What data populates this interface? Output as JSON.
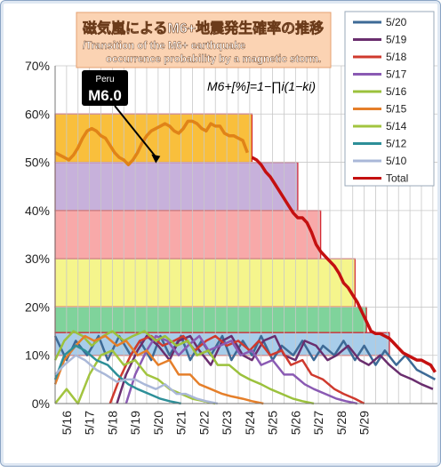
{
  "chart_data": {
    "type": "line",
    "title": "磁気嵐によるM6+地震発生確率の推移",
    "subtitle": "/Transition of the M6+ earthquake occurrence probability by a magnetic storm.",
    "formula": "M6+[%]=1−∏i(1−ki)",
    "annotation": {
      "country": "Peru",
      "magnitude": "M6.0",
      "x": 4.4,
      "y": 50
    },
    "ylim": [
      0,
      70
    ],
    "xlim": [
      0,
      16.7
    ],
    "yticks": [
      "0%",
      "10%",
      "20%",
      "30%",
      "40%",
      "50%",
      "60%",
      "70%"
    ],
    "xticks": [
      "5/16",
      "5/17",
      "5/18",
      "5/19",
      "5/20",
      "5/21",
      "5/22",
      "5/23",
      "5/24",
      "5/25",
      "5/26",
      "5/27",
      "5/28",
      "5/29"
    ],
    "legend_position": "right",
    "bands": [
      {
        "x0": 0,
        "x1": 8.6,
        "y0": 50,
        "y1": 60,
        "color": "#f9bf3c"
      },
      {
        "x0": 0,
        "x1": 10.6,
        "y0": 40,
        "y1": 50,
        "color": "#c7b1db"
      },
      {
        "x0": 0,
        "x1": 11.6,
        "y0": 30,
        "y1": 40,
        "color": "#f8a9a9"
      },
      {
        "x0": 0,
        "x1": 13.1,
        "y0": 20,
        "y1": 30,
        "color": "#f5f58c"
      },
      {
        "x0": 0,
        "x1": 13.6,
        "y0": 14.7,
        "y1": 20,
        "color": "#7fd39b"
      },
      {
        "x0": 0,
        "x1": 14.6,
        "y0": 10,
        "y1": 14.7,
        "color": "#a8cdea"
      }
    ],
    "series": [
      {
        "name": "5/20",
        "color": "#3d6a96",
        "width": 2.5,
        "x": [
          0,
          0.5,
          0.9,
          1.4,
          1.9,
          2.3,
          2.8,
          3.3,
          3.7,
          4.2,
          4.6,
          5.0,
          5.5,
          5.9,
          6.4,
          6.8,
          7.3,
          7.7,
          8.2,
          8.6,
          9.0,
          9.5,
          9.9,
          10.4,
          10.8,
          11.3,
          11.7,
          12.2,
          12.6,
          13.1,
          13.5,
          14.0,
          14.4,
          14.9,
          15.3,
          15.8,
          16.2,
          16.6
        ],
        "y": [
          14,
          9,
          13,
          10,
          14,
          9,
          14,
          10,
          13,
          9,
          14,
          10,
          14,
          9,
          13,
          10,
          14,
          9,
          13,
          10,
          14,
          9,
          12,
          10,
          13,
          9,
          12,
          10,
          13,
          9,
          12,
          8,
          11,
          8,
          10,
          7,
          6,
          5
        ]
      },
      {
        "name": "5/19",
        "color": "#6a2e6e",
        "width": 2.5,
        "x": [
          2.7,
          3.1,
          3.6,
          4.0,
          4.5,
          5.0,
          5.4,
          5.9,
          6.3,
          6.8,
          7.3,
          7.7,
          8.2,
          8.6,
          9.1,
          9.6,
          10.0,
          10.5,
          10.9,
          11.4,
          11.9,
          12.3,
          12.8,
          13.3,
          13.7,
          14.2,
          14.6,
          15.1,
          15.6,
          16.0,
          16.5
        ],
        "y": [
          0,
          6,
          11,
          14,
          12,
          9,
          13,
          14,
          11,
          8,
          13,
          14,
          10,
          9,
          13,
          14,
          10,
          9,
          13,
          12,
          9,
          10,
          12,
          9,
          8,
          10,
          8,
          6,
          5,
          4,
          3
        ]
      },
      {
        "name": "5/18",
        "color": "#cf3a2e",
        "width": 2.5,
        "x": [
          2.4,
          2.8,
          3.3,
          3.7,
          4.2,
          4.7,
          5.2,
          5.6,
          6.1,
          6.6,
          7.0,
          7.5,
          8.0,
          8.5,
          8.9,
          9.4,
          9.9,
          10.3,
          10.8,
          11.2,
          11.7,
          12.2,
          12.6,
          13.1,
          13.5
        ],
        "y": [
          0,
          5,
          10,
          13,
          14,
          12,
          13,
          14,
          11,
          13,
          14,
          12,
          13,
          11,
          13,
          10,
          11,
          8,
          9,
          6,
          5,
          3,
          2,
          1,
          0
        ]
      },
      {
        "name": "5/17",
        "color": "#8a5ab3",
        "width": 2.5,
        "x": [
          3.1,
          3.5,
          4.0,
          4.4,
          4.9,
          5.4,
          5.8,
          6.3,
          6.7,
          7.2,
          7.7,
          8.1,
          8.6,
          9.0,
          9.5,
          10.0,
          10.4,
          10.9,
          11.3,
          11.8,
          12.3,
          12.7,
          13.2
        ],
        "y": [
          0,
          6,
          11,
          14,
          13,
          10,
          12,
          14,
          11,
          12,
          13,
          10,
          11,
          8,
          9,
          6,
          6,
          4,
          3,
          2,
          1,
          0.5,
          0
        ]
      },
      {
        "name": "5/16",
        "color": "#9bc13c",
        "width": 2.5,
        "x": [
          0,
          0.4,
          0.8,
          1.2,
          1.6,
          2.1,
          2.5,
          3.0,
          3.4,
          3.9,
          4.4,
          4.8,
          5.3,
          5.8,
          6.2,
          6.7,
          7.1,
          7.6,
          8.1,
          8.5,
          9.0,
          9.4,
          9.9,
          10.4,
          10.8,
          11.3
        ],
        "y": [
          9,
          13,
          15,
          14,
          12,
          14,
          15,
          13,
          14,
          15,
          13,
          14,
          12,
          13,
          10,
          11,
          8,
          8,
          6,
          5,
          4,
          3,
          2,
          1,
          0.5,
          0
        ]
      },
      {
        "name": "5/15",
        "color": "#e57f2a",
        "width": 2.5,
        "x": [
          0,
          0.4,
          0.9,
          1.3,
          1.7,
          2.2,
          2.7,
          3.1,
          3.6,
          4.0,
          4.5,
          5.0,
          5.4,
          5.9,
          6.3,
          6.8,
          7.3,
          7.7,
          8.2,
          8.6,
          9.1
        ],
        "y": [
          4,
          9,
          12,
          14,
          13,
          14,
          12,
          13,
          10,
          11,
          8,
          9,
          6,
          6,
          4,
          3,
          2,
          1.5,
          1,
          0.5,
          0
        ]
      },
      {
        "name": "5/14",
        "color": "#a2c43f",
        "width": 2.5,
        "x": [
          0,
          0.5,
          1.0,
          1.5,
          2.0,
          2.5,
          3.0,
          3.5,
          4.0,
          4.5,
          5.0,
          5.5,
          6.0,
          6.5,
          7.0
        ],
        "y": [
          0,
          3,
          0,
          6,
          10,
          11,
          8,
          9,
          6,
          5,
          3,
          2,
          1,
          0.5,
          0
        ]
      },
      {
        "name": "5/12",
        "color": "#2d8f98",
        "width": 2.5,
        "x": [
          0,
          0.4,
          0.9,
          1.3,
          1.8,
          2.3,
          2.7,
          3.2,
          3.6,
          4.1,
          4.6,
          5.0,
          5.5
        ],
        "y": [
          5,
          10,
          12,
          11,
          9,
          8,
          6,
          4,
          3,
          2,
          1,
          0.5,
          0
        ]
      },
      {
        "name": "5/10",
        "color": "#aab8d8",
        "width": 2.5,
        "x": [
          0,
          0.4,
          0.9,
          1.3,
          1.8,
          2.2,
          2.7,
          3.1,
          3.5,
          3.9,
          4.4,
          4.8,
          5.3,
          5.7,
          6.2,
          6.6,
          7.1
        ],
        "y": [
          6,
          8,
          10,
          9,
          7,
          6,
          4.5,
          5,
          5,
          4,
          3,
          4,
          2,
          2,
          1,
          0.5,
          0
        ]
      },
      {
        "name": "Total",
        "color": "#e08318",
        "width": 3.5,
        "x": [
          0,
          0.2,
          0.4,
          0.6,
          0.8,
          1.0,
          1.2,
          1.4,
          1.6,
          1.8,
          2.0,
          2.2,
          2.4,
          2.6,
          2.8,
          3.0,
          3.2,
          3.4,
          3.6,
          3.8,
          4.0,
          4.2,
          4.4,
          4.6,
          4.8,
          5.0,
          5.2,
          5.4,
          5.6,
          5.8,
          6.0,
          6.2,
          6.4,
          6.6,
          6.8,
          7.0,
          7.2,
          7.4,
          7.6,
          7.8,
          8.0,
          8.2,
          8.4,
          8.6,
          8.8,
          9.0,
          9.2,
          9.4,
          9.6,
          9.8,
          10.0,
          10.2,
          10.4,
          10.6,
          10.8,
          11.0,
          11.2,
          11.4,
          11.6,
          11.8,
          12.0,
          12.2,
          12.4,
          12.6,
          12.8,
          13.0,
          13.2,
          13.4,
          13.6,
          13.8,
          14.0,
          14.2,
          14.4,
          14.6,
          14.8,
          15.0,
          15.2,
          15.4,
          15.6,
          15.8,
          16.0,
          16.2,
          16.4,
          16.6
        ],
        "y": [
          52,
          51.5,
          51,
          50.5,
          51.5,
          53,
          55,
          56.5,
          57,
          56.5,
          55.5,
          55,
          53.5,
          52,
          51,
          50.5,
          49.5,
          50.5,
          52,
          54,
          55.5,
          56.5,
          57,
          57.5,
          58,
          57.5,
          56.5,
          56,
          57,
          58.5,
          58.5,
          58,
          57,
          56.5,
          58,
          57.5,
          57.5,
          56,
          55.5,
          55.5,
          55,
          54.5,
          52,
          51,
          50.5,
          49.5,
          48,
          47,
          45.5,
          44,
          42.5,
          41,
          39.5,
          38.5,
          38.5,
          37.5,
          35.5,
          33,
          31.5,
          30.5,
          29.5,
          28.5,
          27,
          25,
          24,
          22.5,
          21,
          19,
          17,
          15,
          14.5,
          14.5,
          14,
          13.5,
          12.5,
          11.5,
          10.5,
          10,
          9.5,
          9,
          9,
          8.5,
          8,
          6.5
        ]
      }
    ],
    "total_dark_from_x": 8.5,
    "total_dark_color": "#c41010"
  }
}
